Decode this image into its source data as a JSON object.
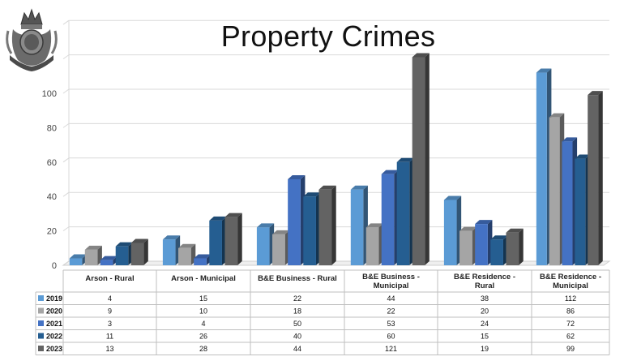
{
  "chart_data": {
    "type": "bar",
    "title": "Property Crimes",
    "categories": [
      "Arson - Rural",
      "Arson - Municipal",
      "B&E Business - Rural",
      "B&E Business - Municipal",
      "B&E Residence - Rural",
      "B&E Residence - Municipal"
    ],
    "series": [
      {
        "name": "2019",
        "values": [
          4,
          15,
          22,
          44,
          38,
          112
        ]
      },
      {
        "name": "2020",
        "values": [
          9,
          10,
          18,
          22,
          20,
          86
        ]
      },
      {
        "name": "2021",
        "values": [
          3,
          4,
          50,
          53,
          24,
          72
        ]
      },
      {
        "name": "2022",
        "values": [
          11,
          26,
          40,
          60,
          15,
          62
        ]
      },
      {
        "name": "2023",
        "values": [
          13,
          28,
          44,
          121,
          19,
          99
        ]
      }
    ],
    "ylim": [
      0,
      140
    ],
    "yticks": [
      0,
      20,
      40,
      60,
      80,
      100
    ],
    "grid": true,
    "legend": "data-table"
  },
  "colors": {
    "2019": "#5b9bd5",
    "2020": "#a5a5a5",
    "2021": "#4472c4",
    "2022": "#255e91",
    "2023": "#636363"
  }
}
